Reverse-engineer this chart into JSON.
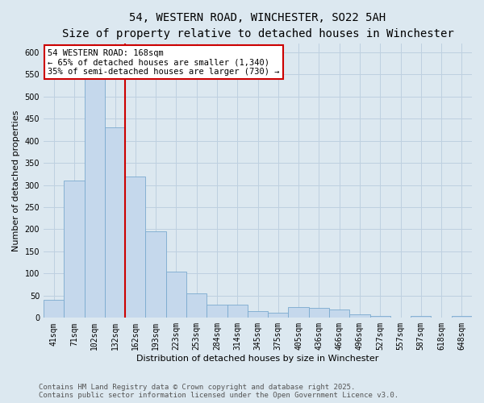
{
  "title_line1": "54, WESTERN ROAD, WINCHESTER, SO22 5AH",
  "title_line2": "Size of property relative to detached houses in Winchester",
  "xlabel": "Distribution of detached houses by size in Winchester",
  "ylabel": "Number of detached properties",
  "categories": [
    "41sqm",
    "71sqm",
    "102sqm",
    "132sqm",
    "162sqm",
    "193sqm",
    "223sqm",
    "253sqm",
    "284sqm",
    "314sqm",
    "345sqm",
    "375sqm",
    "405sqm",
    "436sqm",
    "466sqm",
    "496sqm",
    "527sqm",
    "557sqm",
    "587sqm",
    "618sqm",
    "648sqm"
  ],
  "values": [
    40,
    310,
    550,
    430,
    320,
    195,
    105,
    55,
    30,
    30,
    15,
    12,
    25,
    22,
    18,
    8,
    4,
    0,
    4,
    0,
    4
  ],
  "bar_color": "#c5d8ec",
  "bar_edge_color": "#7aaacf",
  "grid_color": "#bed0e0",
  "background_color": "#dce8f0",
  "red_line_index": 4,
  "red_line_color": "#cc0000",
  "ylim": [
    0,
    620
  ],
  "yticks": [
    0,
    50,
    100,
    150,
    200,
    250,
    300,
    350,
    400,
    450,
    500,
    550,
    600
  ],
  "annotation_text": "54 WESTERN ROAD: 168sqm\n← 65% of detached houses are smaller (1,340)\n35% of semi-detached houses are larger (730) →",
  "annotation_box_facecolor": "#ffffff",
  "annotation_border_color": "#cc0000",
  "footer_line1": "Contains HM Land Registry data © Crown copyright and database right 2025.",
  "footer_line2": "Contains public sector information licensed under the Open Government Licence v3.0.",
  "title_fontsize": 10,
  "subtitle_fontsize": 9,
  "axis_label_fontsize": 8,
  "tick_fontsize": 7,
  "annotation_fontsize": 7.5,
  "footer_fontsize": 6.5
}
